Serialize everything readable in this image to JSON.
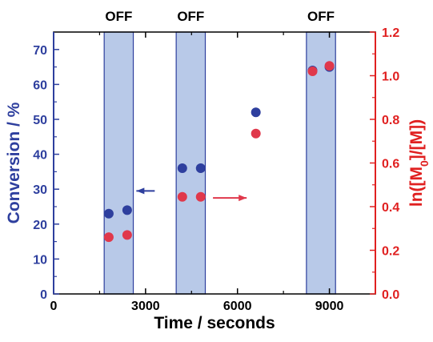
{
  "chart_data": {
    "type": "scatter",
    "xlabel": "Time / seconds",
    "ylabel_left": "Conversion / %",
    "ylabel_right_base": "ln([M",
    "ylabel_right_sub": "0",
    "ylabel_right_tail": "]/[M])",
    "xlim": [
      0,
      10500
    ],
    "ylim_left": [
      0,
      75
    ],
    "ylim_right": [
      0,
      1.2
    ],
    "x_ticks": [
      "0",
      "3000",
      "6000",
      "9000"
    ],
    "x_tick_values": [
      0,
      3000,
      6000,
      9000
    ],
    "y_left_ticks": [
      "0",
      "10",
      "20",
      "30",
      "40",
      "50",
      "60",
      "70"
    ],
    "y_left_tick_values": [
      0,
      10,
      20,
      30,
      40,
      50,
      60,
      70
    ],
    "y_right_ticks": [
      "0.0",
      "0.2",
      "0.4",
      "0.6",
      "0.8",
      "1.0",
      "1.2"
    ],
    "y_right_tick_values": [
      0,
      0.2,
      0.4,
      0.6,
      0.8,
      1.0,
      1.2
    ],
    "off_periods": [
      {
        "label": "OFF",
        "start": 1650,
        "end": 2600
      },
      {
        "label": "OFF",
        "start": 4000,
        "end": 4950
      },
      {
        "label": "OFF",
        "start": 8250,
        "end": 9200
      }
    ],
    "series": [
      {
        "axis": "left",
        "color": "#2e3f9e",
        "points": [
          [
            1800,
            23
          ],
          [
            2400,
            24
          ],
          [
            4200,
            36
          ],
          [
            4800,
            36
          ],
          [
            6600,
            52
          ],
          [
            8450,
            64
          ],
          [
            9000,
            65
          ]
        ]
      },
      {
        "axis": "right",
        "color": "#e0384b",
        "points": [
          [
            1800,
            0.26
          ],
          [
            2400,
            0.27
          ],
          [
            4200,
            0.445
          ],
          [
            4800,
            0.445
          ],
          [
            6600,
            0.735
          ],
          [
            8450,
            1.02
          ],
          [
            9000,
            1.045
          ]
        ]
      }
    ],
    "arrows": [
      {
        "direction": "left",
        "color": "#2e3f9e",
        "from": [
          3300,
          29.5
        ],
        "to": [
          2700,
          29.5
        ],
        "axis": "left"
      },
      {
        "direction": "right",
        "color": "#e0384b",
        "from": [
          5200,
          0.44
        ],
        "to": [
          6300,
          0.44
        ],
        "axis": "right"
      }
    ],
    "axis_colors": {
      "left": "#2e3f9e",
      "right": "#e02020",
      "x": "#000000"
    },
    "shade_color": "#b8c9e8",
    "shade_edge_color": "#2e3f9e",
    "grid": false
  }
}
